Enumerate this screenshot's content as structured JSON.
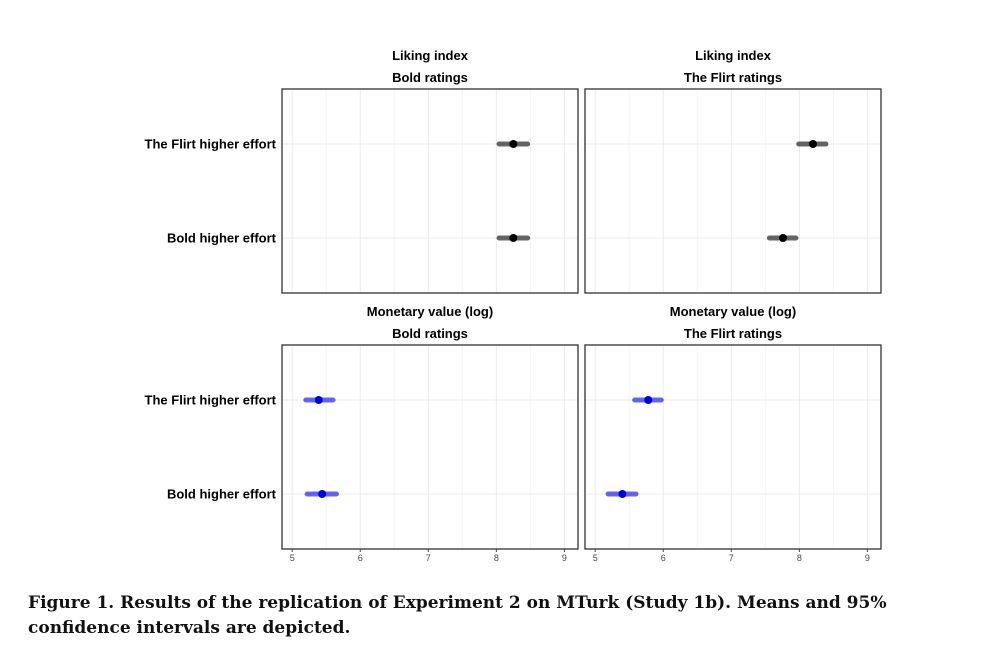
{
  "caption": "Figure 1.  Results of the replication of Experiment 2 on MTurk (Study 1b). Means and 95% confidence intervals are depicted.",
  "colors": {
    "liking": "#000000",
    "monetary": "#0000dd",
    "grid": "#ebebeb",
    "panel_border": "#333333"
  },
  "chart_data": [
    {
      "type": "scatter",
      "title": "Liking index",
      "subtitle": "Bold ratings",
      "categories": [
        "The Flirt higher effort",
        "Bold higher effort"
      ],
      "xlim": [
        4.85,
        9.2
      ],
      "xticks": [
        5,
        6,
        7,
        8,
        9
      ],
      "x_tick_labels_shown": false,
      "grid": true,
      "color": "#000000",
      "points": [
        {
          "category": "The Flirt higher effort",
          "mean": 8.25,
          "ci": [
            8.04,
            8.46
          ]
        },
        {
          "category": "Bold higher effort",
          "mean": 8.25,
          "ci": [
            8.04,
            8.46
          ]
        }
      ]
    },
    {
      "type": "scatter",
      "title": "Liking index",
      "subtitle": "The Flirt ratings",
      "categories": [
        "The Flirt higher effort",
        "Bold higher effort"
      ],
      "xlim": [
        4.85,
        9.2
      ],
      "xticks": [
        5,
        6,
        7,
        8,
        9
      ],
      "x_tick_labels_shown": false,
      "grid": true,
      "color": "#000000",
      "points": [
        {
          "category": "The Flirt higher effort",
          "mean": 8.2,
          "ci": [
            7.99,
            8.39
          ]
        },
        {
          "category": "Bold higher effort",
          "mean": 7.76,
          "ci": [
            7.56,
            7.95
          ]
        }
      ]
    },
    {
      "type": "scatter",
      "title": "Monetary value (log)",
      "subtitle": "Bold ratings",
      "categories": [
        "The Flirt higher effort",
        "Bold higher effort"
      ],
      "xlim": [
        4.85,
        9.2
      ],
      "xticks": [
        5,
        6,
        7,
        8,
        9
      ],
      "x_tick_labels_shown": true,
      "grid": true,
      "color": "#0000dd",
      "points": [
        {
          "category": "The Flirt higher effort",
          "mean": 5.39,
          "ci": [
            5.2,
            5.6
          ]
        },
        {
          "category": "Bold higher effort",
          "mean": 5.44,
          "ci": [
            5.22,
            5.65
          ]
        }
      ]
    },
    {
      "type": "scatter",
      "title": "Monetary value (log)",
      "subtitle": "The Flirt ratings",
      "categories": [
        "The Flirt higher effort",
        "Bold higher effort"
      ],
      "xlim": [
        4.85,
        9.2
      ],
      "xticks": [
        5,
        6,
        7,
        8,
        9
      ],
      "x_tick_labels_shown": true,
      "grid": true,
      "color": "#0000dd",
      "points": [
        {
          "category": "The Flirt higher effort",
          "mean": 5.78,
          "ci": [
            5.58,
            5.97
          ]
        },
        {
          "category": "Bold higher effort",
          "mean": 5.4,
          "ci": [
            5.19,
            5.6
          ]
        }
      ]
    }
  ]
}
